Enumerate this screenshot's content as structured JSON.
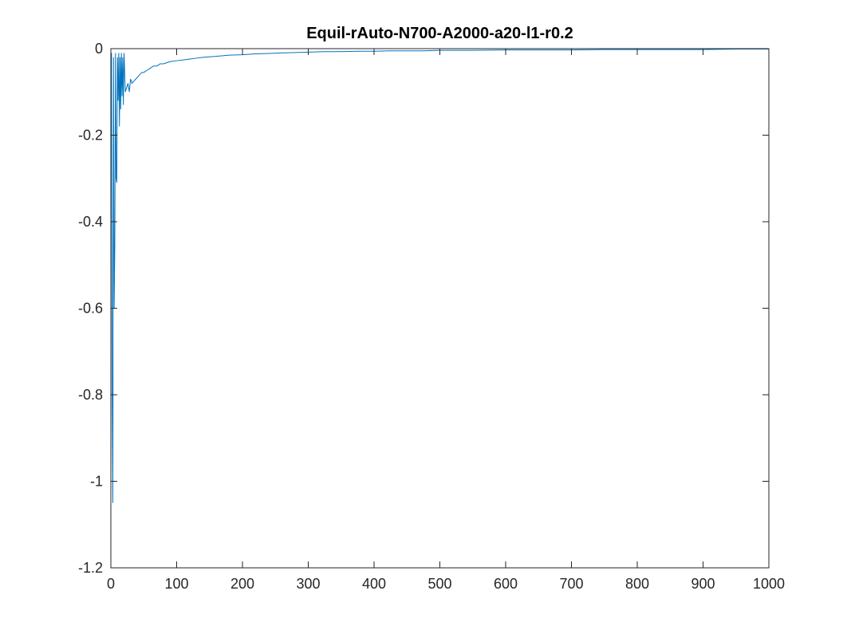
{
  "chart_data": {
    "type": "line",
    "title": "Equil-rAuto-N700-A2000-a20-l1-r0.2",
    "xlabel": "",
    "ylabel": "",
    "xlim": [
      0,
      1000
    ],
    "ylim": [
      -1.2,
      0
    ],
    "x_ticks": [
      0,
      100,
      200,
      300,
      400,
      500,
      600,
      700,
      800,
      900,
      1000
    ],
    "y_ticks": [
      0,
      -0.2,
      -0.4,
      -0.6,
      -0.8,
      -1,
      -1.2
    ],
    "x_tick_labels": [
      "0",
      "100",
      "200",
      "300",
      "400",
      "500",
      "600",
      "700",
      "800",
      "900",
      "1000"
    ],
    "y_tick_labels": [
      "0",
      "-0.2",
      "-0.4",
      "-0.6",
      "-0.8",
      "-1",
      "-1.2"
    ],
    "grid": false,
    "series": [
      {
        "color": "#0072BD",
        "x": [
          1,
          2,
          3,
          4,
          5,
          6,
          7,
          8,
          9,
          10,
          11,
          12,
          13,
          14,
          15,
          16,
          17,
          18,
          19,
          20,
          22,
          24,
          26,
          28,
          30,
          32,
          35,
          38,
          41,
          44,
          47,
          50,
          55,
          60,
          65,
          70,
          75,
          80,
          90,
          100,
          110,
          120,
          130,
          140,
          150,
          165,
          180,
          200,
          220,
          240,
          260,
          280,
          300,
          325,
          350,
          375,
          400,
          425,
          450,
          475,
          500,
          550,
          600,
          650,
          700,
          750,
          800,
          850,
          900,
          950,
          1000
        ],
        "y": [
          -0.01,
          -0.8,
          -1.05,
          -0.02,
          -0.6,
          -0.45,
          -0.01,
          -0.3,
          -0.31,
          -0.02,
          -0.12,
          -0.01,
          -0.18,
          -0.02,
          -0.14,
          -0.01,
          -0.11,
          -0.02,
          -0.13,
          -0.01,
          -0.1,
          -0.09,
          -0.08,
          -0.1,
          -0.07,
          -0.08,
          -0.075,
          -0.07,
          -0.065,
          -0.06,
          -0.055,
          -0.055,
          -0.05,
          -0.045,
          -0.04,
          -0.04,
          -0.035,
          -0.035,
          -0.03,
          -0.028,
          -0.026,
          -0.024,
          -0.022,
          -0.02,
          -0.019,
          -0.017,
          -0.015,
          -0.014,
          -0.012,
          -0.011,
          -0.01,
          -0.009,
          -0.008,
          -0.007,
          -0.007,
          -0.006,
          -0.006,
          -0.005,
          -0.005,
          -0.005,
          -0.004,
          -0.004,
          -0.003,
          -0.003,
          -0.003,
          -0.002,
          -0.002,
          -0.002,
          -0.002,
          -0.001,
          -0.001
        ]
      }
    ]
  }
}
